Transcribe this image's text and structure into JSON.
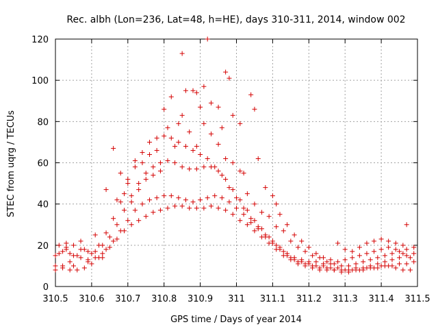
{
  "chart_data": {
    "type": "scatter",
    "title": "Rec. albh (Lon=236, Lat=48, h=HE), days 310-311, 2014, window 002",
    "xlabel": "GPS time / Days of year 2014",
    "ylabel": "STEC from uqrg / TECUs",
    "xlim": [
      310.5,
      311.5
    ],
    "ylim": [
      0,
      120
    ],
    "grid": true,
    "x_ticks": [
      "310.5",
      "310.6",
      "310.7",
      "310.8",
      "310.9",
      "311",
      "311.1",
      "311.2",
      "311.3",
      "311.4",
      "311.5"
    ],
    "y_ticks": [
      "0",
      "20",
      "40",
      "60",
      "80",
      "100",
      "120"
    ],
    "marker": "+",
    "color": "#d40000",
    "series": [
      {
        "name": "",
        "points": [
          [
            310.5,
            15
          ],
          [
            310.51,
            16
          ],
          [
            310.52,
            17
          ],
          [
            310.53,
            18
          ],
          [
            310.54,
            16
          ],
          [
            310.55,
            15
          ],
          [
            310.57,
            14
          ],
          [
            310.59,
            13
          ],
          [
            310.61,
            14
          ],
          [
            310.63,
            16
          ],
          [
            310.65,
            19
          ],
          [
            310.67,
            23
          ],
          [
            310.69,
            27
          ],
          [
            310.71,
            30
          ],
          [
            310.73,
            32
          ],
          [
            310.75,
            34
          ],
          [
            310.77,
            36
          ],
          [
            310.79,
            37
          ],
          [
            310.81,
            38
          ],
          [
            310.83,
            39
          ],
          [
            310.85,
            39
          ],
          [
            310.87,
            38
          ],
          [
            310.89,
            38
          ],
          [
            310.91,
            38
          ],
          [
            310.93,
            39
          ],
          [
            310.95,
            38
          ],
          [
            310.97,
            37
          ],
          [
            310.99,
            35
          ],
          [
            311.01,
            32
          ],
          [
            311.03,
            30
          ],
          [
            311.05,
            27
          ],
          [
            311.07,
            24
          ],
          [
            311.09,
            21
          ],
          [
            311.11,
            18
          ],
          [
            311.13,
            15
          ],
          [
            311.15,
            13
          ],
          [
            311.17,
            11
          ],
          [
            311.19,
            10
          ],
          [
            311.21,
            9
          ],
          [
            311.23,
            8
          ],
          [
            311.25,
            8
          ],
          [
            311.27,
            8
          ],
          [
            311.29,
            7
          ],
          [
            311.31,
            7
          ],
          [
            311.33,
            8
          ],
          [
            311.35,
            8
          ],
          [
            311.37,
            9
          ],
          [
            311.39,
            9
          ],
          [
            311.41,
            10
          ],
          [
            311.43,
            10
          ],
          [
            311.45,
            11
          ],
          [
            311.47,
            11
          ],
          [
            311.49,
            12
          ],
          [
            310.5,
            10
          ],
          [
            310.52,
            9
          ],
          [
            310.54,
            8
          ],
          [
            310.56,
            8
          ],
          [
            310.58,
            9
          ],
          [
            310.6,
            11
          ],
          [
            310.62,
            14
          ],
          [
            310.64,
            18
          ],
          [
            310.66,
            22
          ],
          [
            310.68,
            27
          ],
          [
            310.7,
            32
          ],
          [
            310.72,
            37
          ],
          [
            310.74,
            40
          ],
          [
            310.76,
            42
          ],
          [
            310.78,
            43
          ],
          [
            310.8,
            44
          ],
          [
            310.82,
            44
          ],
          [
            310.84,
            43
          ],
          [
            310.86,
            42
          ],
          [
            310.88,
            41
          ],
          [
            310.9,
            42
          ],
          [
            310.92,
            43
          ],
          [
            310.94,
            44
          ],
          [
            310.96,
            43
          ],
          [
            310.98,
            41
          ],
          [
            311.0,
            38
          ],
          [
            311.02,
            35
          ],
          [
            311.04,
            31
          ],
          [
            311.06,
            28
          ],
          [
            311.08,
            24
          ],
          [
            311.1,
            21
          ],
          [
            311.12,
            18
          ],
          [
            311.14,
            15
          ],
          [
            311.16,
            13
          ],
          [
            311.18,
            12
          ],
          [
            311.2,
            11
          ],
          [
            311.22,
            10
          ],
          [
            311.24,
            10
          ],
          [
            311.26,
            9
          ],
          [
            311.28,
            9
          ],
          [
            311.3,
            8
          ],
          [
            311.32,
            8
          ],
          [
            311.34,
            8
          ],
          [
            311.36,
            9
          ],
          [
            311.38,
            9
          ],
          [
            311.4,
            10
          ],
          [
            311.42,
            10
          ],
          [
            311.44,
            9
          ],
          [
            311.46,
            8
          ],
          [
            311.48,
            8
          ],
          [
            310.51,
            20
          ],
          [
            310.53,
            21
          ],
          [
            310.55,
            20
          ],
          [
            310.57,
            18
          ],
          [
            310.59,
            17
          ],
          [
            310.61,
            17
          ],
          [
            310.63,
            20
          ],
          [
            310.65,
            24
          ],
          [
            310.67,
            30
          ],
          [
            310.69,
            37
          ],
          [
            310.71,
            44
          ],
          [
            310.73,
            50
          ],
          [
            310.75,
            55
          ],
          [
            310.77,
            58
          ],
          [
            310.79,
            60
          ],
          [
            310.81,
            61
          ],
          [
            310.83,
            60
          ],
          [
            310.85,
            58
          ],
          [
            310.87,
            57
          ],
          [
            310.89,
            57
          ],
          [
            310.91,
            58
          ],
          [
            310.93,
            58
          ],
          [
            310.95,
            56
          ],
          [
            310.97,
            52
          ],
          [
            310.99,
            47
          ],
          [
            311.01,
            42
          ],
          [
            311.03,
            37
          ],
          [
            311.05,
            32
          ],
          [
            311.07,
            28
          ],
          [
            311.09,
            24
          ],
          [
            311.11,
            20
          ],
          [
            311.13,
            17
          ],
          [
            311.15,
            14
          ],
          [
            311.17,
            12
          ],
          [
            311.19,
            11
          ],
          [
            311.21,
            10
          ],
          [
            311.23,
            9
          ],
          [
            311.25,
            9
          ],
          [
            311.27,
            8
          ],
          [
            311.29,
            8
          ],
          [
            311.31,
            8
          ],
          [
            311.33,
            9
          ],
          [
            311.35,
            9
          ],
          [
            311.37,
            10
          ],
          [
            311.39,
            11
          ],
          [
            311.41,
            12
          ],
          [
            311.43,
            13
          ],
          [
            311.45,
            14
          ],
          [
            311.47,
            15
          ],
          [
            311.49,
            16
          ],
          [
            310.5,
            8
          ],
          [
            310.52,
            10
          ],
          [
            310.54,
            12
          ],
          [
            310.56,
            15
          ],
          [
            310.58,
            18
          ],
          [
            310.6,
            16
          ],
          [
            310.62,
            20
          ],
          [
            310.64,
            26
          ],
          [
            310.66,
            33
          ],
          [
            310.68,
            41
          ],
          [
            310.7,
            50
          ],
          [
            310.72,
            58
          ],
          [
            310.74,
            65
          ],
          [
            310.76,
            70
          ],
          [
            310.78,
            72
          ],
          [
            310.8,
            73
          ],
          [
            310.82,
            72
          ],
          [
            310.84,
            70
          ],
          [
            310.86,
            68
          ],
          [
            310.88,
            66
          ],
          [
            310.9,
            64
          ],
          [
            310.92,
            62
          ],
          [
            310.94,
            58
          ],
          [
            310.96,
            54
          ],
          [
            310.98,
            48
          ],
          [
            311.0,
            43
          ],
          [
            311.02,
            38
          ],
          [
            311.04,
            33
          ],
          [
            311.06,
            29
          ],
          [
            311.08,
            25
          ],
          [
            311.1,
            22
          ],
          [
            311.12,
            19
          ],
          [
            311.14,
            16
          ],
          [
            311.16,
            14
          ],
          [
            311.18,
            13
          ],
          [
            311.2,
            12
          ],
          [
            311.22,
            12
          ],
          [
            311.24,
            11
          ],
          [
            311.26,
            11
          ],
          [
            311.28,
            12
          ],
          [
            311.3,
            13
          ],
          [
            311.32,
            14
          ],
          [
            311.34,
            15
          ],
          [
            311.36,
            16
          ],
          [
            311.38,
            17
          ],
          [
            311.4,
            18
          ],
          [
            311.42,
            19
          ],
          [
            311.44,
            18
          ],
          [
            311.46,
            16
          ],
          [
            311.48,
            14
          ],
          [
            310.53,
            19
          ],
          [
            310.57,
            22
          ],
          [
            310.61,
            25
          ],
          [
            310.64,
            47
          ],
          [
            310.66,
            67
          ],
          [
            310.68,
            55
          ],
          [
            310.7,
            52
          ],
          [
            310.72,
            61
          ],
          [
            310.74,
            60
          ],
          [
            310.76,
            64
          ],
          [
            310.78,
            66
          ],
          [
            310.8,
            86
          ],
          [
            310.82,
            92
          ],
          [
            310.84,
            79
          ],
          [
            310.85,
            113
          ],
          [
            310.86,
            95
          ],
          [
            310.88,
            95
          ],
          [
            310.89,
            94
          ],
          [
            310.9,
            87
          ],
          [
            310.91,
            97
          ],
          [
            310.92,
            120
          ],
          [
            310.93,
            89
          ],
          [
            310.95,
            87
          ],
          [
            310.96,
            77
          ],
          [
            310.97,
            104
          ],
          [
            310.98,
            101
          ],
          [
            310.99,
            83
          ],
          [
            311.01,
            79
          ],
          [
            311.02,
            55
          ],
          [
            311.04,
            93
          ],
          [
            311.05,
            86
          ],
          [
            311.06,
            62
          ],
          [
            311.08,
            48
          ],
          [
            311.1,
            44
          ],
          [
            311.11,
            40
          ],
          [
            311.12,
            35
          ],
          [
            311.14,
            30
          ],
          [
            311.16,
            25
          ],
          [
            311.18,
            22
          ],
          [
            311.2,
            19
          ],
          [
            311.22,
            16
          ],
          [
            311.24,
            14
          ],
          [
            311.26,
            13
          ],
          [
            311.28,
            21
          ],
          [
            311.3,
            18
          ],
          [
            311.32,
            17
          ],
          [
            311.34,
            19
          ],
          [
            311.36,
            21
          ],
          [
            311.38,
            22
          ],
          [
            311.4,
            23
          ],
          [
            311.42,
            22
          ],
          [
            311.44,
            21
          ],
          [
            311.46,
            20
          ],
          [
            311.47,
            30
          ],
          [
            310.55,
            10
          ],
          [
            310.59,
            12
          ],
          [
            310.63,
            14
          ],
          [
            310.67,
            42
          ],
          [
            310.69,
            45
          ],
          [
            310.71,
            41
          ],
          [
            310.73,
            47
          ],
          [
            310.75,
            52
          ],
          [
            310.77,
            54
          ],
          [
            310.79,
            56
          ],
          [
            310.81,
            77
          ],
          [
            310.83,
            68
          ],
          [
            310.85,
            83
          ],
          [
            310.87,
            75
          ],
          [
            310.89,
            68
          ],
          [
            310.91,
            79
          ],
          [
            310.93,
            74
          ],
          [
            310.95,
            69
          ],
          [
            310.97,
            62
          ],
          [
            310.99,
            60
          ],
          [
            311.01,
            56
          ],
          [
            311.03,
            45
          ],
          [
            311.05,
            40
          ],
          [
            311.07,
            36
          ],
          [
            311.09,
            34
          ],
          [
            311.11,
            29
          ],
          [
            311.13,
            27
          ],
          [
            311.15,
            22
          ],
          [
            311.17,
            19
          ],
          [
            311.19,
            17
          ],
          [
            311.21,
            15
          ],
          [
            311.23,
            14
          ],
          [
            311.25,
            12
          ],
          [
            311.27,
            11
          ],
          [
            311.29,
            10
          ],
          [
            311.31,
            10
          ],
          [
            311.33,
            11
          ],
          [
            311.35,
            12
          ],
          [
            311.37,
            13
          ],
          [
            311.39,
            14
          ],
          [
            311.41,
            15
          ],
          [
            311.43,
            16
          ],
          [
            311.45,
            17
          ],
          [
            311.47,
            18
          ],
          [
            311.49,
            19
          ]
        ]
      }
    ]
  }
}
